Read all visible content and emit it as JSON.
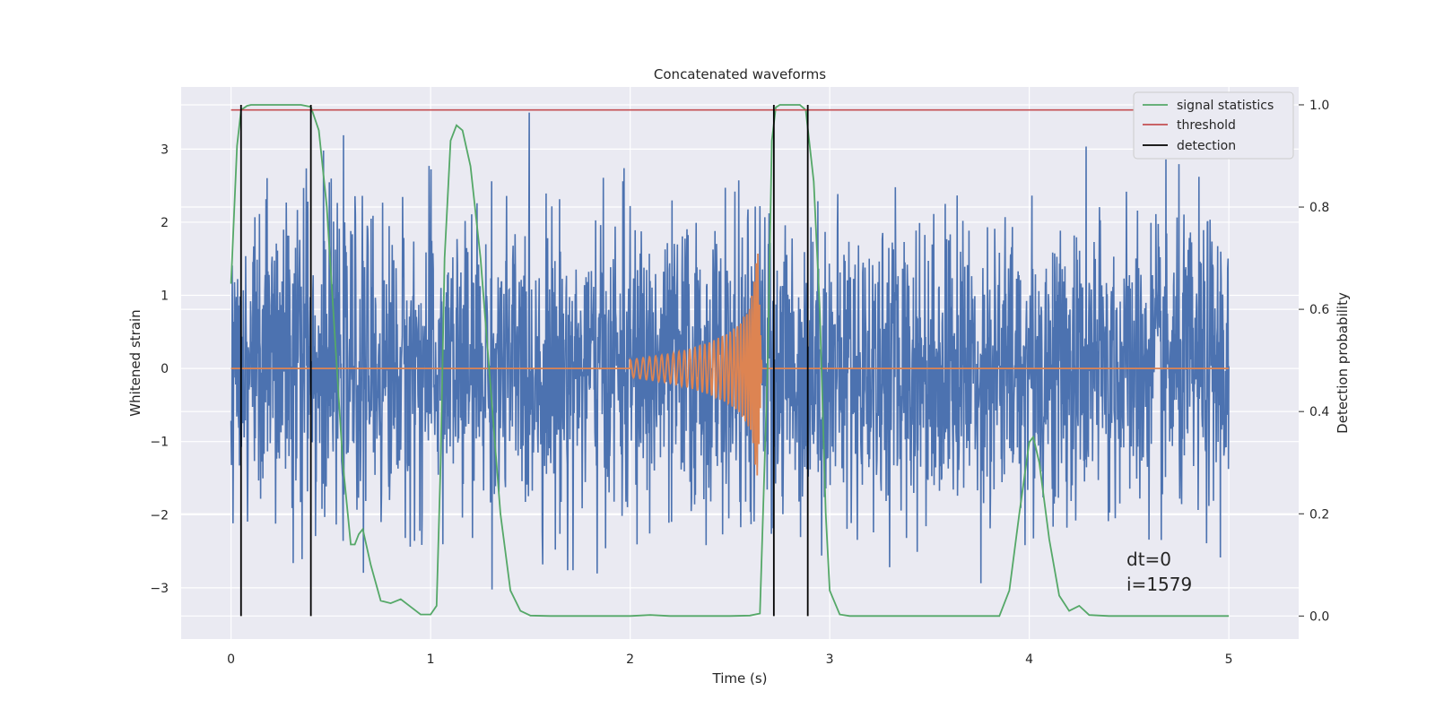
{
  "chart_data": {
    "type": "line",
    "title": "Concatenated waveforms",
    "xlabel": "Time (s)",
    "ylabel_left": "Whitened strain",
    "ylabel_right": "Detection probability",
    "xlim": [
      -0.25,
      5.35
    ],
    "ylim_left": [
      -3.7,
      3.85
    ],
    "ylim_right": [
      -0.045,
      1.035
    ],
    "x_ticks": [
      0,
      1,
      2,
      3,
      4,
      5
    ],
    "y_ticks_left": [
      -3,
      -2,
      -1,
      0,
      1,
      2,
      3
    ],
    "y_ticks_right": [
      0.0,
      0.2,
      0.4,
      0.6,
      0.8,
      1.0
    ],
    "x_tick_labels": [
      "0",
      "1",
      "2",
      "3",
      "4",
      "5"
    ],
    "y_tick_labels_left": [
      "−3",
      "−2",
      "−1",
      "0",
      "1",
      "2",
      "3"
    ],
    "y_tick_labels_right": [
      "0.0",
      "0.2",
      "0.4",
      "0.6",
      "0.8",
      "1.0"
    ],
    "grid": true,
    "legend_position": "upper right",
    "colors": {
      "strain": "#4c72b0",
      "waveform": "#dd8452",
      "signal_statistics": "#55a868",
      "threshold": "#c44e52",
      "detection": "#000000",
      "axes_background": "#eaeaf2",
      "grid": "#ffffff"
    },
    "strain_noise": {
      "x_range": [
        0,
        5
      ],
      "amplitude_sigma": 1.0,
      "peak_min": -3.35,
      "peak_max": 3.5
    },
    "injected_waveform": {
      "x": [
        2.0,
        2.1,
        2.2,
        2.3,
        2.4,
        2.5,
        2.55,
        2.6,
        2.62,
        2.64,
        2.66,
        2.7,
        3.0,
        5.0
      ],
      "envelope": [
        0.12,
        0.16,
        0.2,
        0.27,
        0.36,
        0.5,
        0.62,
        0.85,
        1.15,
        1.65,
        0.0,
        0.0,
        0.0,
        0.0
      ]
    },
    "series": [
      {
        "name": "signal statistics",
        "axis": "right",
        "x": [
          0.0,
          0.03,
          0.05,
          0.08,
          0.1,
          0.2,
          0.35,
          0.4,
          0.44,
          0.48,
          0.52,
          0.56,
          0.6,
          0.62,
          0.64,
          0.66,
          0.7,
          0.75,
          0.8,
          0.85,
          0.9,
          0.95,
          1.0,
          1.03,
          1.05,
          1.07,
          1.1,
          1.13,
          1.16,
          1.2,
          1.25,
          1.3,
          1.35,
          1.4,
          1.45,
          1.5,
          1.6,
          2.0,
          2.1,
          2.2,
          2.5,
          2.6,
          2.65,
          2.69,
          2.71,
          2.73,
          2.75,
          2.8,
          2.85,
          2.88,
          2.92,
          2.95,
          2.98,
          3.0,
          3.05,
          3.1,
          3.5,
          3.85,
          3.9,
          3.95,
          4.0,
          4.02,
          4.05,
          4.1,
          4.15,
          4.2,
          4.25,
          4.3,
          4.4,
          5.0
        ],
        "y": [
          0.65,
          0.92,
          0.99,
          0.998,
          1.0,
          1.0,
          1.0,
          0.996,
          0.95,
          0.8,
          0.55,
          0.3,
          0.14,
          0.14,
          0.16,
          0.17,
          0.1,
          0.03,
          0.025,
          0.033,
          0.018,
          0.003,
          0.003,
          0.02,
          0.3,
          0.7,
          0.93,
          0.96,
          0.95,
          0.88,
          0.7,
          0.45,
          0.2,
          0.05,
          0.01,
          0.001,
          0.0,
          0.0,
          0.002,
          0.0,
          0.0,
          0.001,
          0.005,
          0.5,
          0.93,
          0.995,
          1.0,
          1.0,
          1.0,
          0.99,
          0.85,
          0.6,
          0.2,
          0.05,
          0.003,
          0.0,
          0.0,
          0.0,
          0.05,
          0.2,
          0.34,
          0.35,
          0.3,
          0.15,
          0.04,
          0.01,
          0.02,
          0.002,
          0.0,
          0.0
        ]
      },
      {
        "name": "threshold",
        "axis": "right",
        "x": [
          0,
          5
        ],
        "y": [
          0.99,
          0.99
        ]
      },
      {
        "name": "detection",
        "axis": "right",
        "x": [
          0.05,
          0.4,
          2.72,
          2.89
        ],
        "y_range": [
          0.0,
          1.0
        ]
      }
    ],
    "legend": [
      "signal statistics",
      "threshold",
      "detection"
    ],
    "annotations": [
      "dt=0",
      "i=1579"
    ]
  }
}
